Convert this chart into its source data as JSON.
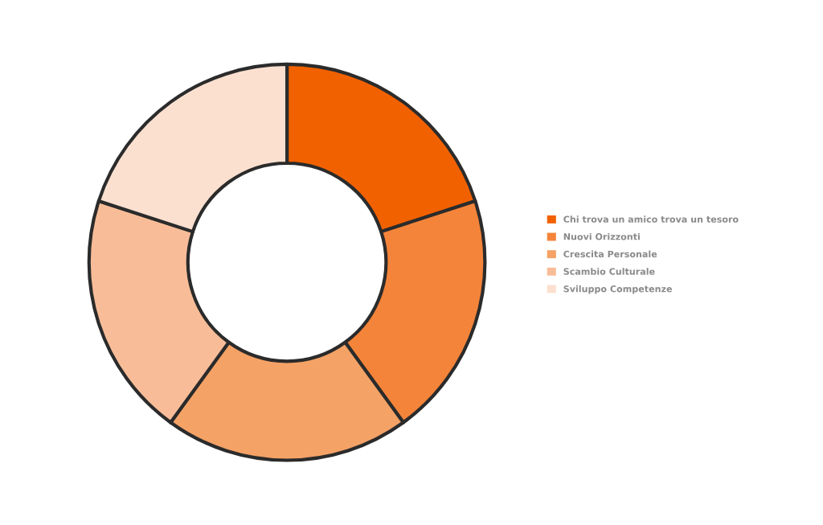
{
  "chart_data": {
    "type": "donut",
    "categories": [
      "Chi trova un amico trova un tesoro",
      "Nuovi Orizzonti",
      "Crescita Personale",
      "Scambio Culturale",
      "Sviluppo Competenze"
    ],
    "values": [
      20,
      20,
      20,
      20,
      20
    ],
    "colors": [
      "#f26100",
      "#f4843a",
      "#f5a266",
      "#f8bd98",
      "#fbe0d0"
    ],
    "legend": "right"
  }
}
